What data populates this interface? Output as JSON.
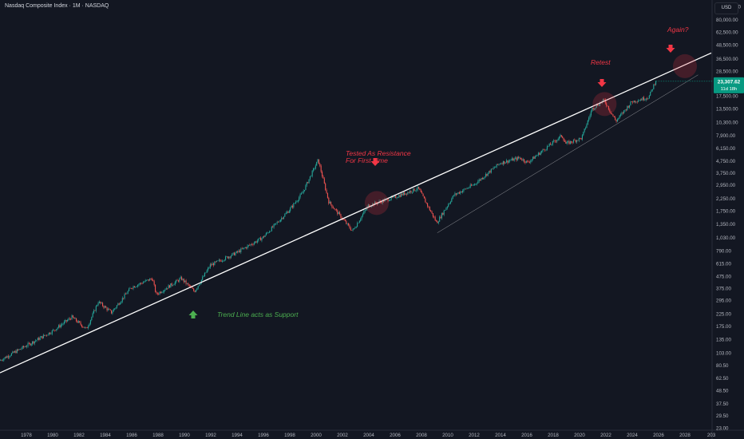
{
  "header": {
    "symbol_title": "Nasdaq Composite Index · 1M · NASDAQ",
    "currency": "USD"
  },
  "price_tag": {
    "value": "23,307.62",
    "countdown": "11d 18h"
  },
  "colors": {
    "background": "#131722",
    "up_candle": "#26a69a",
    "down_candle": "#ef5350",
    "trend_line": "#ffffff",
    "annotation_red": "#f23645",
    "annotation_green": "#4caf50",
    "axis_text": "#b2b5be",
    "price_tag": "#089981"
  },
  "annotations": [
    {
      "id": "again",
      "text": "Again?",
      "color": "#f23645"
    },
    {
      "id": "retest",
      "text": "Retest",
      "color": "#f23645"
    },
    {
      "id": "tested1",
      "text": "Tested As Resistance",
      "color": "#f23645"
    },
    {
      "id": "tested2",
      "text": "For First Time",
      "color": "#f23645"
    },
    {
      "id": "support",
      "text": "Trend Line acts as Support",
      "color": "#4caf50"
    }
  ],
  "chart_data": {
    "type": "candlestick",
    "title": "Nasdaq Composite Index · 1M · NASDAQ",
    "interval": "1M",
    "yscale": "log",
    "xlim": [
      1976,
      2030
    ],
    "ylim": [
      23,
      104000
    ],
    "x_tick_labels": [
      "1978",
      "1980",
      "1982",
      "1984",
      "1986",
      "1988",
      "1990",
      "1992",
      "1994",
      "1996",
      "1998",
      "2000",
      "2002",
      "2004",
      "2006",
      "2008",
      "2010",
      "2012",
      "2014",
      "2016",
      "2018",
      "2020",
      "2022",
      "2024",
      "2026",
      "2028",
      "203"
    ],
    "y_tick_labels": [
      "104,000.00",
      "80,000.00",
      "62,500.00",
      "48,500.00",
      "36,500.00",
      "28,500.00",
      "17,500.00",
      "13,500.00",
      "10,300.00",
      "7,900.00",
      "6,150.00",
      "4,750.00",
      "3,750.00",
      "2,950.00",
      "2,250.00",
      "1,750.00",
      "1,350.00",
      "1,030.00",
      "790.00",
      "615.00",
      "475.00",
      "375.00",
      "295.00",
      "225.00",
      "175.00",
      "135.00",
      "103.00",
      "80.50",
      "62.50",
      "48.50",
      "37.50",
      "29.50",
      "23.00"
    ],
    "series": [
      {
        "x": [
          1976.0,
          1978.0,
          1980.0,
          1981.5,
          1982.6,
          1983.5,
          1984.5,
          1986.0,
          1987.6,
          1987.9,
          1989.8,
          1990.8,
          1992.0,
          1994.0,
          1996.0,
          1998.0,
          1999.0,
          2000.2,
          2001.0,
          2002.8,
          2004.0,
          2006.0,
          2007.8,
          2009.2,
          2010.5,
          2012.0,
          2014.0,
          2015.5,
          2016.1,
          2018.7,
          2019.0,
          2020.2,
          2021.0,
          2021.9,
          2022.8,
          2024.0,
          2025.3,
          2025.8
        ],
        "values": [
          88,
          118,
          158,
          210,
          165,
          285,
          230,
          380,
          455,
          330,
          455,
          350,
          590,
          760,
          1030,
          1780,
          2500,
          4850,
          2100,
          1170,
          1950,
          2300,
          2750,
          1380,
          2400,
          2950,
          4550,
          5050,
          4600,
          7900,
          6700,
          7500,
          13500,
          16000,
          10500,
          15500,
          17000,
          23307.62
        ]
      }
    ],
    "trend_lines": [
      {
        "label": "main support/resistance trend line",
        "from": [
          1976.0,
          69
        ],
        "to": [
          2030.0,
          41000
        ]
      },
      {
        "label": "lower parallel line",
        "from": [
          2009.2,
          1130
        ],
        "to": [
          2029.0,
          26500
        ]
      }
    ],
    "last_price": 23307.62
  }
}
